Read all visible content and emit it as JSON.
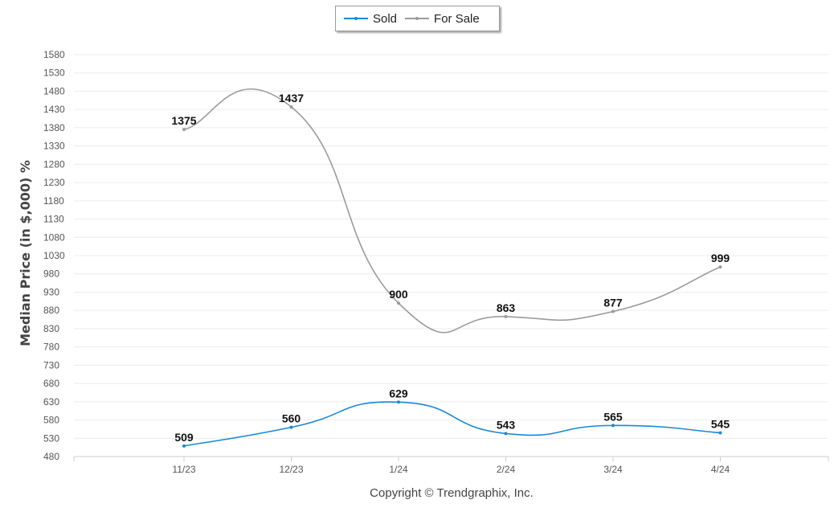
{
  "chart_data": {
    "type": "line",
    "categories": [
      "11/23",
      "12/23",
      "1/24",
      "2/24",
      "3/24",
      "4/24"
    ],
    "series": [
      {
        "name": "Sold",
        "color": "#1a87d4",
        "values": [
          509,
          560,
          629,
          543,
          565,
          545
        ]
      },
      {
        "name": "For Sale",
        "color": "#9b9b9b",
        "values": [
          1375,
          1437,
          900,
          863,
          877,
          999
        ]
      }
    ],
    "ylabel": "Median Price (in $,000) %",
    "xlabel": "Copyright © Trendgraphix, Inc.",
    "ylim": [
      480,
      1580
    ],
    "yticks": [
      480,
      530,
      580,
      630,
      680,
      730,
      780,
      830,
      880,
      930,
      980,
      1030,
      1080,
      1130,
      1180,
      1230,
      1280,
      1330,
      1380,
      1430,
      1480,
      1530,
      1580
    ],
    "grid": true,
    "legend_position": "top-center"
  }
}
